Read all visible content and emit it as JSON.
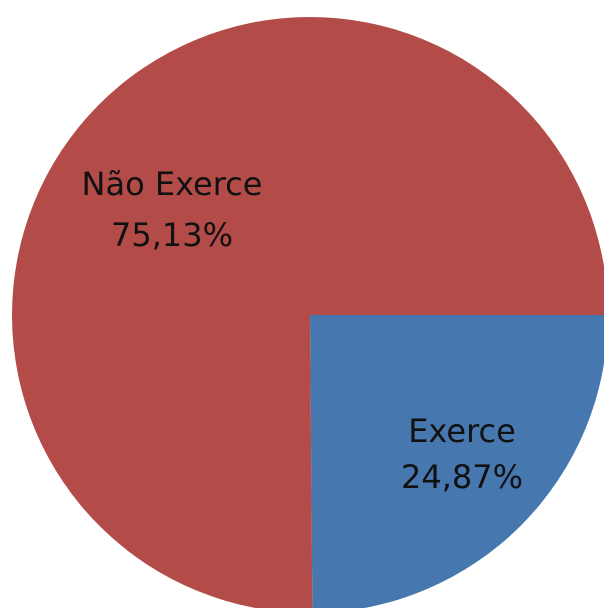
{
  "chart_data": {
    "type": "pie",
    "slices": [
      {
        "label": "Não Exerce",
        "value": 75.13,
        "value_label": "75,13%",
        "color": "#B34C49"
      },
      {
        "label": "Exerce",
        "value": 24.87,
        "value_label": "24,87%",
        "color": "#4777AF"
      }
    ],
    "start_angle_deg": 90,
    "direction": "clockwise",
    "legend": "none"
  }
}
